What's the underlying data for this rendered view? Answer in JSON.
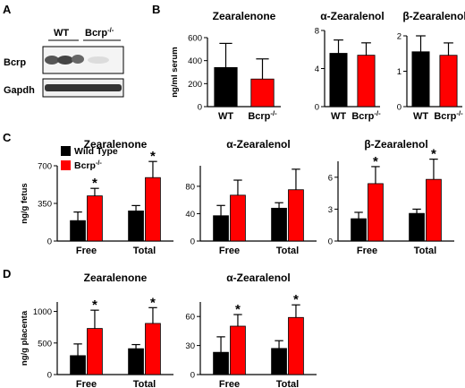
{
  "panel_labels": {
    "a": "A",
    "b": "B",
    "c": "C",
    "d": "D"
  },
  "blot": {
    "lanes": [
      "WT",
      "Bcrp-/-"
    ],
    "rows": [
      "Bcrp",
      "Gapdh"
    ]
  },
  "legend": [
    {
      "label": "Wild Type",
      "color": "#000000"
    },
    {
      "label": "Bcrp-/-",
      "color": "#ff0000"
    }
  ],
  "colors": {
    "wt": "#000000",
    "ko": "#ff0000"
  },
  "chart_data": [
    {
      "id": "b1",
      "type": "bar",
      "title": "Zearalenone",
      "ylabel": "ng/ml serum",
      "categories": [
        "WT",
        "Bcrp-/-"
      ],
      "ylim": [
        0,
        600
      ],
      "yticks": [
        0,
        200,
        400,
        600
      ],
      "values": [
        340,
        240
      ],
      "errors": [
        210,
        175
      ],
      "stars": [
        false,
        false
      ]
    },
    {
      "id": "b2",
      "type": "bar",
      "title": "α-Zearalenol",
      "ylabel": "",
      "categories": [
        "WT",
        "Bcrp-/-"
      ],
      "ylim": [
        0,
        8
      ],
      "yticks": [
        0,
        4,
        8
      ],
      "values": [
        5.6,
        5.4
      ],
      "errors": [
        1.4,
        1.3
      ],
      "stars": [
        false,
        false
      ]
    },
    {
      "id": "b3",
      "type": "bar",
      "title": "β-Zearalenol",
      "ylabel": "",
      "categories": [
        "WT",
        "Bcrp-/-"
      ],
      "ylim": [
        0,
        2
      ],
      "yticks": [
        0,
        1,
        2
      ],
      "values": [
        1.55,
        1.45
      ],
      "errors": [
        0.45,
        0.35
      ],
      "stars": [
        false,
        false
      ]
    },
    {
      "id": "c1",
      "type": "bar",
      "title": "Zearalenone",
      "ylabel": "ng/g fetus",
      "categories": [
        "Free",
        "Total"
      ],
      "ylim": [
        0,
        700
      ],
      "yticks": [
        0,
        350,
        700
      ],
      "series": [
        {
          "name": "Wild Type",
          "values": [
            190,
            280
          ],
          "errors": [
            80,
            50
          ],
          "stars": [
            false,
            false
          ]
        },
        {
          "name": "Bcrp-/-",
          "values": [
            420,
            590
          ],
          "errors": [
            70,
            150
          ],
          "stars": [
            true,
            true
          ]
        }
      ]
    },
    {
      "id": "c2",
      "type": "bar",
      "title": "α-Zearalenol",
      "ylabel": "",
      "categories": [
        "Free",
        "Total"
      ],
      "ylim": [
        0,
        110
      ],
      "yticks": [
        0,
        40,
        80
      ],
      "series": [
        {
          "name": "Wild Type",
          "values": [
            37,
            48
          ],
          "errors": [
            15,
            8
          ],
          "stars": [
            false,
            false
          ]
        },
        {
          "name": "Bcrp-/-",
          "values": [
            67,
            75
          ],
          "errors": [
            22,
            30
          ],
          "stars": [
            false,
            false
          ]
        }
      ]
    },
    {
      "id": "c3",
      "type": "bar",
      "title": "β-Zearalenol",
      "ylabel": "",
      "categories": [
        "Free",
        "Total"
      ],
      "ylim": [
        0,
        7.5
      ],
      "yticks": [
        0,
        3,
        6
      ],
      "series": [
        {
          "name": "Wild Type",
          "values": [
            2.1,
            2.6
          ],
          "errors": [
            0.6,
            0.4
          ],
          "stars": [
            false,
            false
          ]
        },
        {
          "name": "Bcrp-/-",
          "values": [
            5.4,
            5.8
          ],
          "errors": [
            1.6,
            1.9
          ],
          "stars": [
            true,
            true
          ]
        }
      ]
    },
    {
      "id": "d1",
      "type": "bar",
      "title": "Zearalenone",
      "ylabel": "ng/g placenta",
      "categories": [
        "Free",
        "Total"
      ],
      "ylim": [
        0,
        1150
      ],
      "yticks": [
        0,
        500,
        1000
      ],
      "series": [
        {
          "name": "Wild Type",
          "values": [
            300,
            410
          ],
          "errors": [
            185,
            65
          ],
          "stars": [
            false,
            false
          ]
        },
        {
          "name": "Bcrp-/-",
          "values": [
            730,
            810
          ],
          "errors": [
            290,
            250
          ],
          "stars": [
            true,
            true
          ]
        }
      ]
    },
    {
      "id": "d2",
      "type": "bar",
      "title": "α-Zearalenol",
      "ylabel": "",
      "categories": [
        "Free",
        "Total"
      ],
      "ylim": [
        0,
        75
      ],
      "yticks": [
        0,
        30,
        60
      ],
      "series": [
        {
          "name": "Wild Type",
          "values": [
            23,
            27
          ],
          "errors": [
            16,
            8
          ],
          "stars": [
            false,
            false
          ]
        },
        {
          "name": "Bcrp-/-",
          "values": [
            50,
            59
          ],
          "errors": [
            12,
            13
          ],
          "stars": [
            true,
            true
          ]
        }
      ]
    }
  ]
}
